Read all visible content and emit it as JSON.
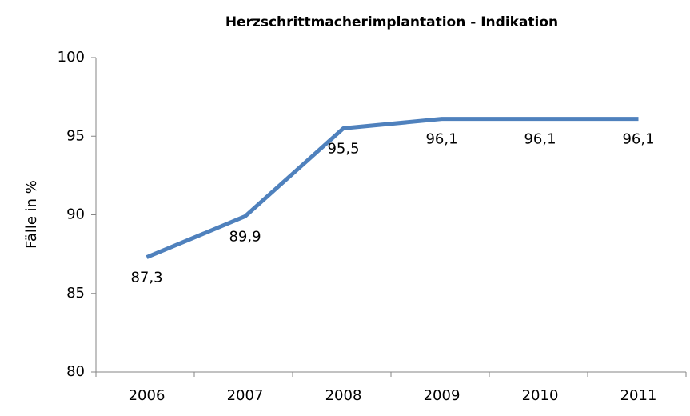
{
  "chart_data": {
    "type": "line",
    "title": "Herzschrittmacherimplantation - Indikation",
    "y_label": "Fälle in %",
    "categories": [
      "2006",
      "2007",
      "2008",
      "2009",
      "2010",
      "2011"
    ],
    "values": [
      87.3,
      89.9,
      95.5,
      96.1,
      96.1,
      96.1
    ],
    "value_labels": [
      "87,3",
      "89,9",
      "95,5",
      "96,1",
      "96,1",
      "96,1"
    ],
    "color": "#4f81bd",
    "ylim": [
      80,
      100
    ],
    "yticks": [
      80,
      85,
      90,
      95,
      100
    ],
    "grid": false
  }
}
